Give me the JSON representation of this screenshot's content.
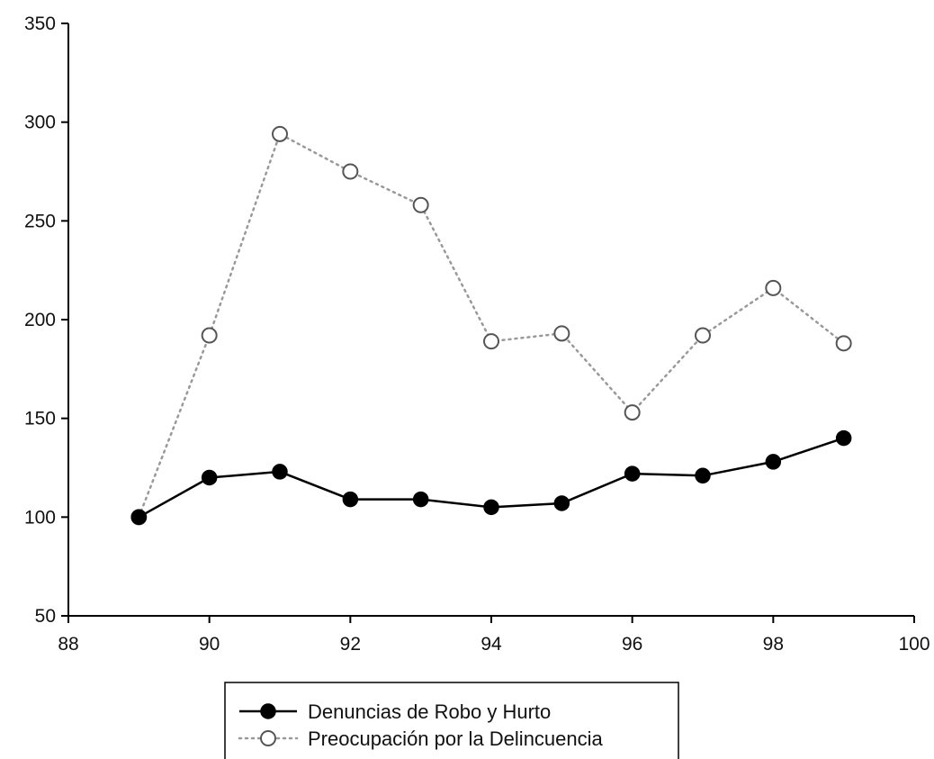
{
  "chart_data": {
    "type": "line",
    "title": "",
    "xlabel": "",
    "ylabel": "",
    "xlim": [
      88,
      100
    ],
    "ylim": [
      50,
      350
    ],
    "x_ticks": [
      "88",
      "90",
      "92",
      "94",
      "96",
      "98",
      "100"
    ],
    "y_ticks": [
      "50",
      "100",
      "150",
      "200",
      "250",
      "300",
      "350"
    ],
    "x": [
      89,
      90,
      91,
      92,
      93,
      94,
      95,
      96,
      97,
      98,
      99
    ],
    "series": [
      {
        "name": "Denuncias de Robo y Hurto",
        "style": "solid",
        "marker": "filled-circle",
        "color": "#000000",
        "values": [
          100,
          120,
          123,
          109,
          109,
          105,
          107,
          122,
          121,
          128,
          140
        ]
      },
      {
        "name": "Preocupación por la Delincuencia",
        "style": "dotted",
        "marker": "open-circle",
        "color": "#999999",
        "values": [
          100,
          192,
          294,
          275,
          258,
          189,
          193,
          153,
          192,
          216,
          188
        ]
      }
    ],
    "grid": false,
    "legend_position": "bottom-center"
  }
}
